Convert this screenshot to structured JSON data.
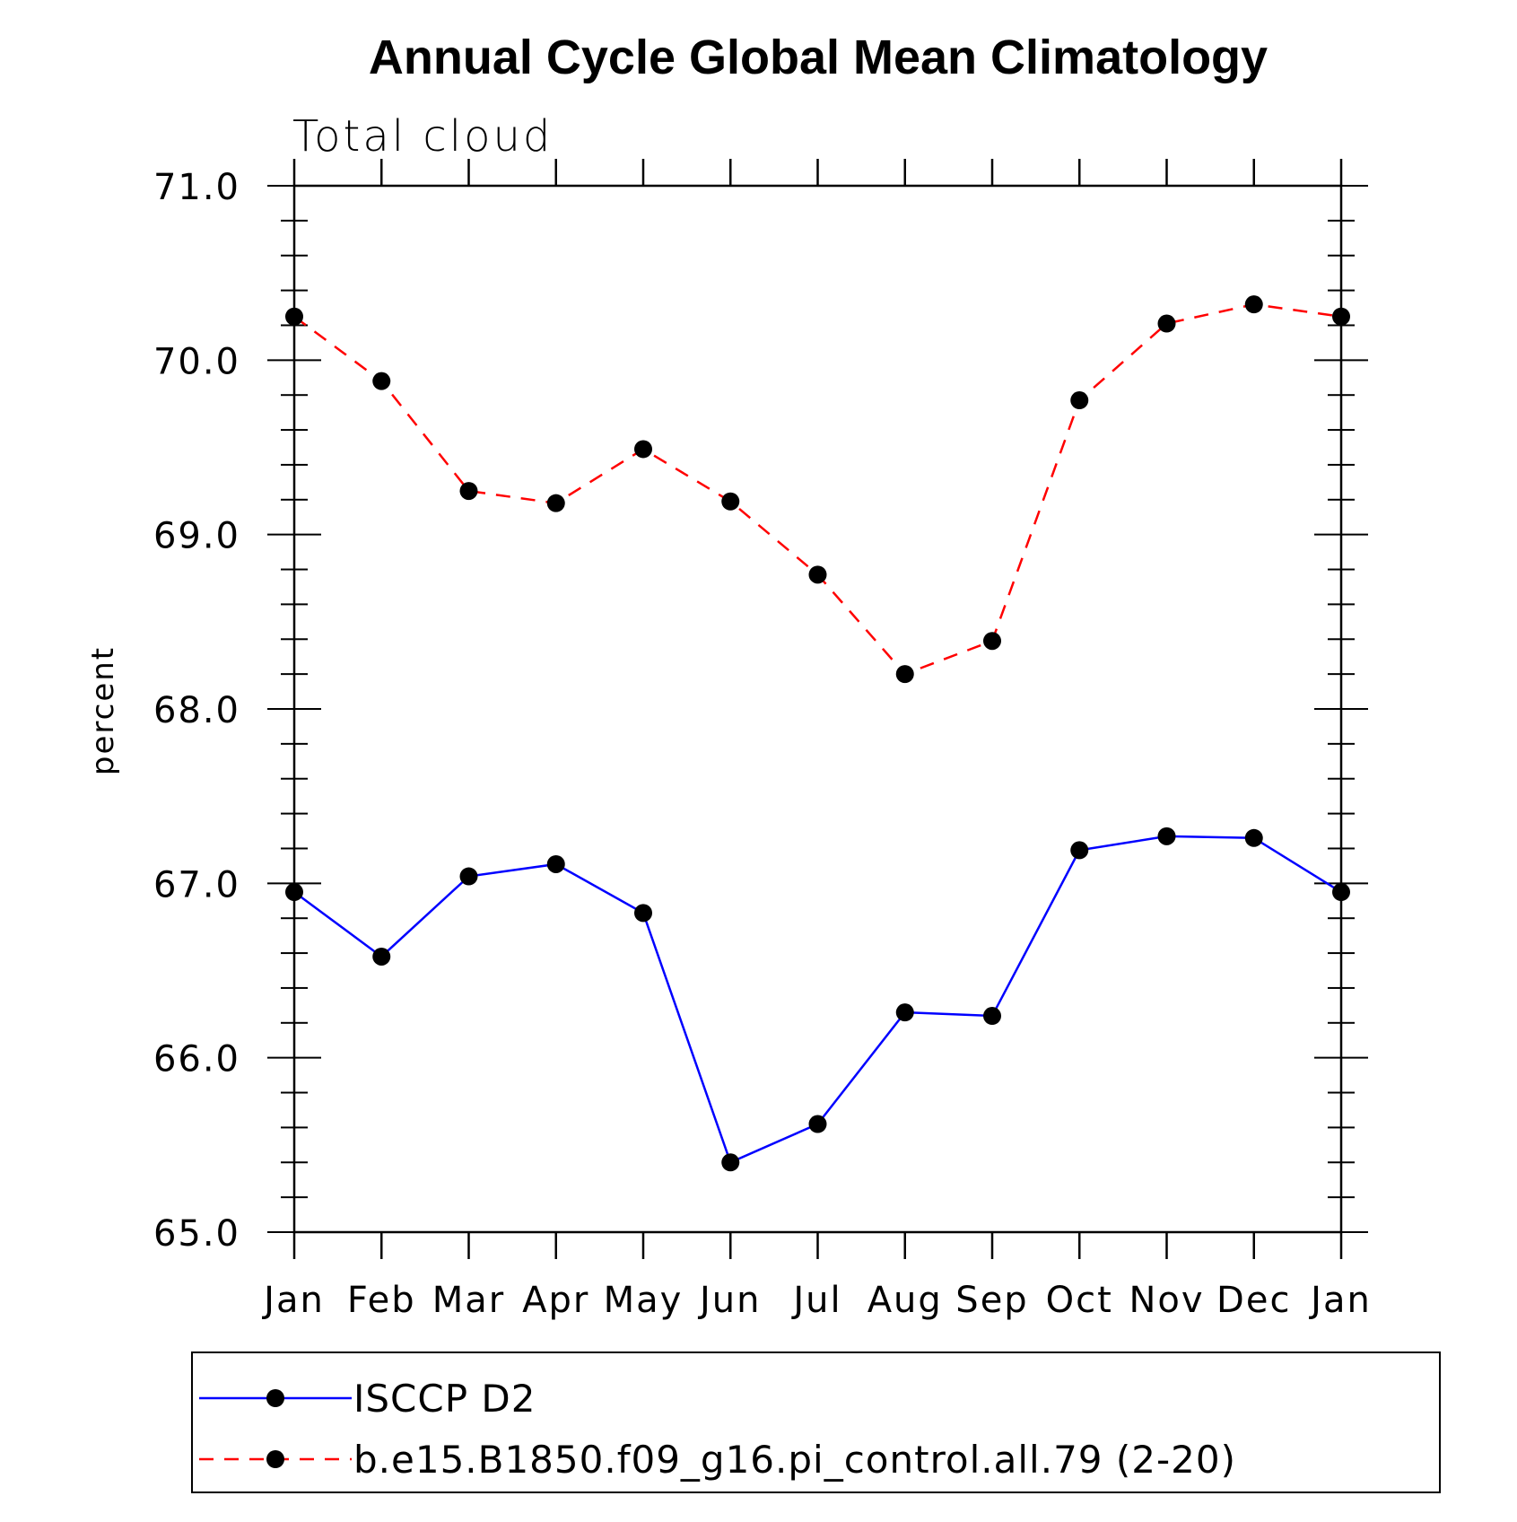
{
  "chart_data": {
    "type": "line",
    "title": "Annual Cycle Global Mean Climatology",
    "subtitle": "Total cloud",
    "xlabel": "",
    "ylabel": "percent",
    "categories": [
      "Jan",
      "Feb",
      "Mar",
      "Apr",
      "May",
      "Jun",
      "Jul",
      "Aug",
      "Sep",
      "Oct",
      "Nov",
      "Dec",
      "Jan"
    ],
    "ylim": [
      65.0,
      71.0
    ],
    "yticks": [
      "65.0",
      "66.0",
      "67.0",
      "68.0",
      "69.0",
      "70.0",
      "71.0"
    ],
    "grid": false,
    "legend": "bottom",
    "series": [
      {
        "name": "ISCCP D2",
        "color": "#0000ff",
        "dash": "solid",
        "marker": "filled-circle",
        "values": [
          66.95,
          66.58,
          67.04,
          67.11,
          66.83,
          65.4,
          65.62,
          66.26,
          66.24,
          67.19,
          67.27,
          67.26,
          66.95
        ]
      },
      {
        "name": "b.e15.B1850.f09_g16.pi_control.all.79 (2-20)",
        "color": "#ff0000",
        "dash": "dashed",
        "marker": "filled-circle",
        "values": [
          70.25,
          69.88,
          69.25,
          69.18,
          69.49,
          69.19,
          68.77,
          68.2,
          68.39,
          69.77,
          70.21,
          70.32,
          70.25
        ]
      }
    ]
  }
}
